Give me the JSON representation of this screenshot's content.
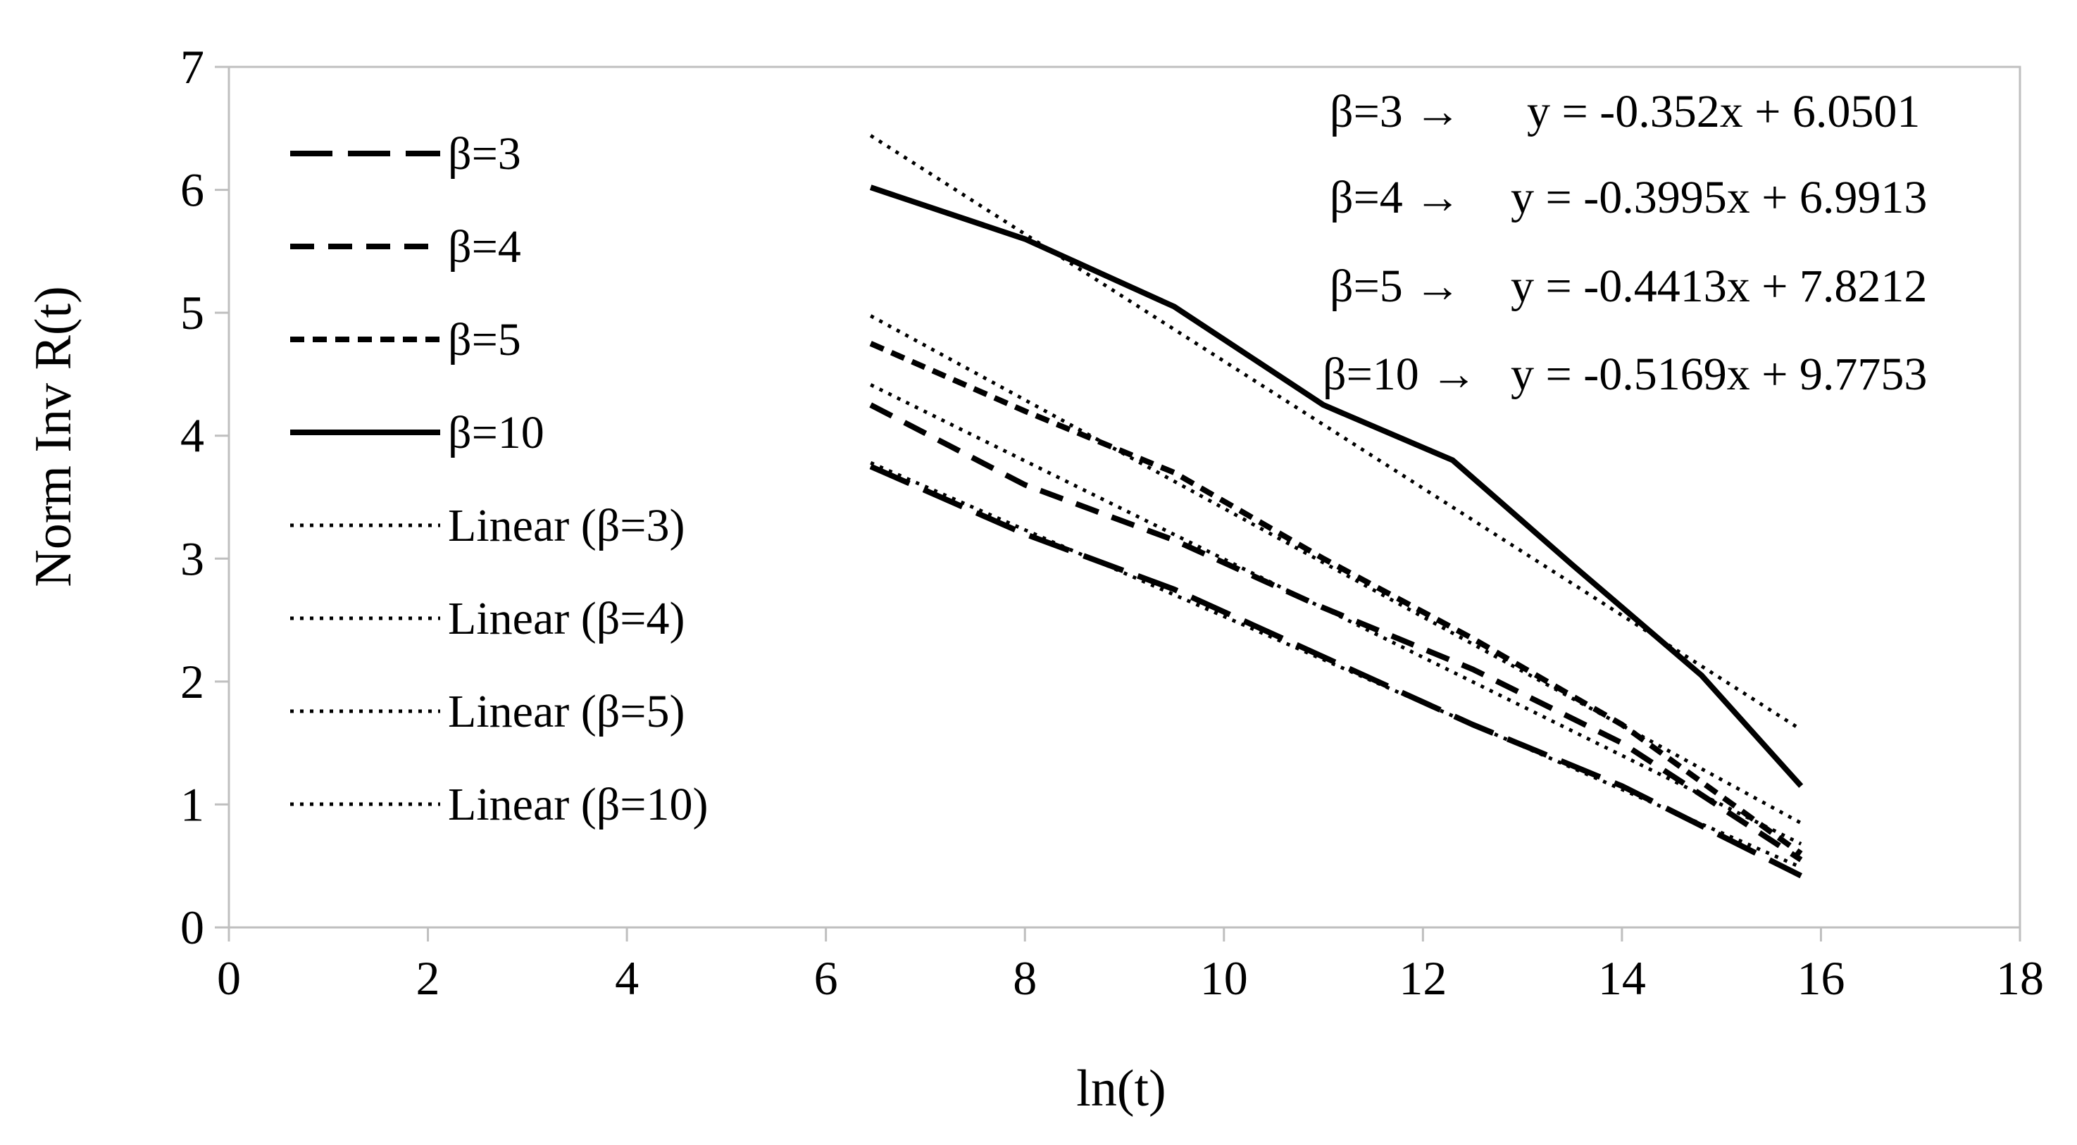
{
  "chart_data": {
    "type": "line",
    "title": "",
    "xlabel": "ln(t)",
    "ylabel": "Norm Inv R(t)",
    "xlim": [
      0,
      18
    ],
    "ylim": [
      0,
      7
    ],
    "xticks": [
      "0",
      "2",
      "4",
      "6",
      "8",
      "10",
      "12",
      "14",
      "16",
      "18"
    ],
    "yticks": [
      "0",
      "1",
      "2",
      "3",
      "4",
      "5",
      "6",
      "7"
    ],
    "grid": false,
    "legend_position": "top-left",
    "series": [
      {
        "name": "β=3",
        "kind": "data",
        "dash": "long-dash",
        "x": [
          6.45,
          8.0,
          9.5,
          11.0,
          12.5,
          14.0,
          15.8
        ],
        "y": [
          3.75,
          3.2,
          2.75,
          2.2,
          1.65,
          1.15,
          0.42
        ]
      },
      {
        "name": "β=4",
        "kind": "data",
        "dash": "dash",
        "x": [
          6.45,
          8.0,
          9.5,
          11.0,
          12.5,
          14.0,
          15.8
        ],
        "y": [
          4.25,
          3.6,
          3.15,
          2.6,
          2.1,
          1.5,
          0.55
        ]
      },
      {
        "name": "β=5",
        "kind": "data",
        "dash": "short-dash",
        "x": [
          6.45,
          8.0,
          9.5,
          11.0,
          12.5,
          14.0,
          15.8
        ],
        "y": [
          4.75,
          4.2,
          3.7,
          3.0,
          2.35,
          1.65,
          0.6
        ]
      },
      {
        "name": "β=10",
        "kind": "data",
        "dash": "solid",
        "x": [
          6.45,
          8.0,
          9.5,
          11.0,
          12.3,
          13.5,
          14.8,
          15.8
        ],
        "y": [
          6.02,
          5.6,
          5.05,
          4.25,
          3.8,
          2.95,
          2.05,
          1.15
        ]
      },
      {
        "name": "Linear (β=3)",
        "kind": "trend",
        "dash": "dotted",
        "slope": -0.352,
        "intercept": 6.0501,
        "x": [
          6.45,
          15.8
        ]
      },
      {
        "name": "Linear (β=4)",
        "kind": "trend",
        "dash": "dotted",
        "slope": -0.3995,
        "intercept": 6.9913,
        "x": [
          6.45,
          15.8
        ]
      },
      {
        "name": "Linear (β=5)",
        "kind": "trend",
        "dash": "dotted",
        "slope": -0.4413,
        "intercept": 7.8212,
        "x": [
          6.45,
          15.8
        ]
      },
      {
        "name": "Linear (β=10)",
        "kind": "trend",
        "dash": "dotted",
        "slope": -0.5169,
        "intercept": 9.7753,
        "x": [
          6.45,
          15.8
        ]
      }
    ],
    "annotations": [
      {
        "label": "β=3 →",
        "equation": "y = -0.352x + 6.0501"
      },
      {
        "label": "β=4 →",
        "equation": "y = -0.3995x + 6.9913"
      },
      {
        "label": "β=5 →",
        "equation": "y = -0.4413x + 7.8212"
      },
      {
        "label": "β=10 →",
        "equation": "y = -0.5169x + 9.7753"
      }
    ],
    "colors": {
      "line": "#000000",
      "axis": "#bfbfbf",
      "background": "#ffffff"
    }
  }
}
